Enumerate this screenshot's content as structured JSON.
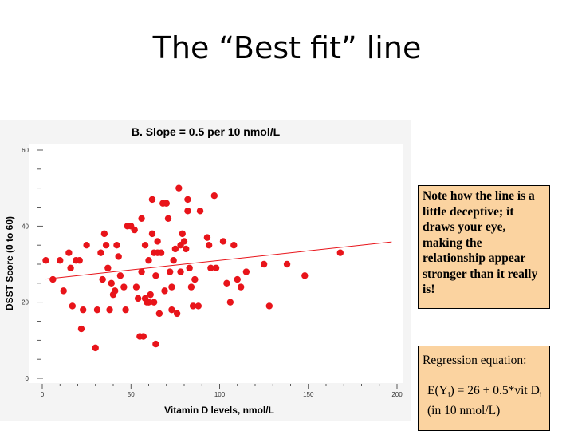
{
  "slide": {
    "title": "The “Best fit” line"
  },
  "note": {
    "text": "Note how the line is a little deceptive; it draws your eye, making the relationship appear stronger than it really is!"
  },
  "regression": {
    "heading": "Regression equation:",
    "equation_prefix": "E(Y",
    "equation_sub_i": "i",
    "equation_mid": ") = 26 + 0.5*vit D",
    "equation_suffix": " (in 10 nmol/L)"
  },
  "colors": {
    "points": "#e8141a",
    "fit_line": "#e8141a",
    "panel_bg": "#f4f4f4",
    "note_bg": "#fbd3a0"
  },
  "chart_data": {
    "type": "scatter",
    "title": "B. Slope = 0.5 per 10 nmol/L",
    "xlabel": "Vitamin D levels, nmol/L",
    "ylabel": "DSST Score (0 to 60)",
    "xlim": [
      0,
      200
    ],
    "ylim": [
      0,
      60
    ],
    "x_ticks": [
      0,
      50,
      100,
      150,
      200
    ],
    "y_ticks": [
      0,
      20,
      40,
      60
    ],
    "grid": false,
    "fit_line": {
      "intercept": 26,
      "slope": 0.05,
      "x_range": [
        2,
        197
      ]
    },
    "points": [
      [
        2,
        31
      ],
      [
        6,
        26
      ],
      [
        10,
        31
      ],
      [
        12,
        23
      ],
      [
        15,
        33
      ],
      [
        16,
        29
      ],
      [
        17,
        19
      ],
      [
        19,
        31
      ],
      [
        21,
        31
      ],
      [
        22,
        13
      ],
      [
        23,
        18
      ],
      [
        25,
        35
      ],
      [
        30,
        8
      ],
      [
        31,
        18
      ],
      [
        33,
        33
      ],
      [
        34,
        26
      ],
      [
        35,
        38
      ],
      [
        36,
        35
      ],
      [
        37,
        29
      ],
      [
        38,
        18
      ],
      [
        39,
        25
      ],
      [
        40,
        22
      ],
      [
        41,
        23
      ],
      [
        42,
        35
      ],
      [
        43,
        32
      ],
      [
        44,
        27
      ],
      [
        46,
        24
      ],
      [
        47,
        18
      ],
      [
        48,
        40
      ],
      [
        50,
        40
      ],
      [
        52,
        39
      ],
      [
        53,
        24
      ],
      [
        54,
        21
      ],
      [
        55,
        11
      ],
      [
        56,
        42
      ],
      [
        56,
        28
      ],
      [
        57,
        11
      ],
      [
        58,
        35
      ],
      [
        58,
        21
      ],
      [
        59,
        20
      ],
      [
        60,
        20
      ],
      [
        60,
        31
      ],
      [
        61,
        22
      ],
      [
        62,
        38
      ],
      [
        62,
        47
      ],
      [
        63,
        20
      ],
      [
        63,
        33
      ],
      [
        64,
        9
      ],
      [
        64,
        27
      ],
      [
        65,
        36
      ],
      [
        65,
        33
      ],
      [
        66,
        17
      ],
      [
        67,
        33
      ],
      [
        68,
        46
      ],
      [
        69,
        23
      ],
      [
        70,
        46
      ],
      [
        71,
        42
      ],
      [
        72,
        28
      ],
      [
        73,
        24
      ],
      [
        73,
        18
      ],
      [
        74,
        31
      ],
      [
        75,
        34
      ],
      [
        76,
        17
      ],
      [
        77,
        50
      ],
      [
        78,
        28
      ],
      [
        78,
        35
      ],
      [
        79,
        38
      ],
      [
        80,
        36
      ],
      [
        81,
        34
      ],
      [
        82,
        44
      ],
      [
        82,
        47
      ],
      [
        83,
        29
      ],
      [
        84,
        24
      ],
      [
        85,
        19
      ],
      [
        86,
        26
      ],
      [
        88,
        19
      ],
      [
        89,
        44
      ],
      [
        93,
        37
      ],
      [
        94,
        35
      ],
      [
        95,
        29
      ],
      [
        97,
        48
      ],
      [
        98,
        29
      ],
      [
        102,
        36
      ],
      [
        104,
        25
      ],
      [
        106,
        20
      ],
      [
        108,
        35
      ],
      [
        110,
        26
      ],
      [
        112,
        24
      ],
      [
        115,
        28
      ],
      [
        125,
        30
      ],
      [
        128,
        19
      ],
      [
        138,
        30
      ],
      [
        148,
        27
      ],
      [
        168,
        33
      ]
    ]
  }
}
